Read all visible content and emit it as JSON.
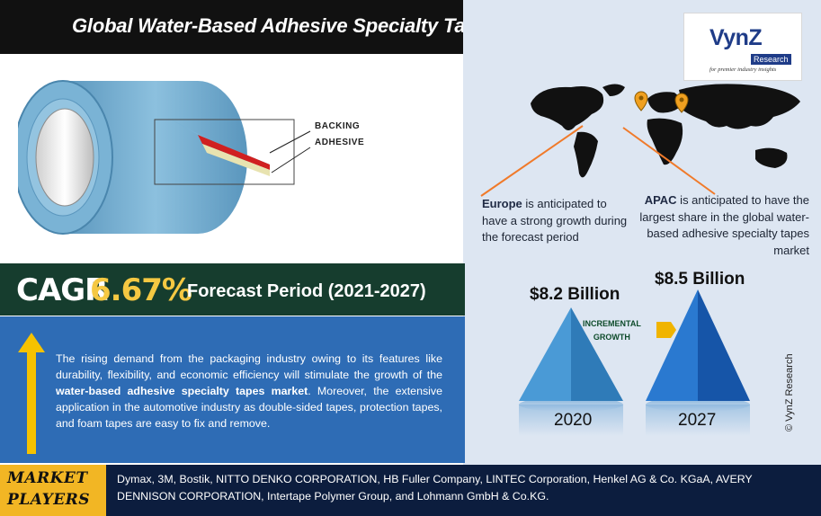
{
  "header": {
    "title": "Global Water-Based Adhesive Specialty Tapes Market"
  },
  "logo": {
    "brand": "VynZ",
    "sub": "Research",
    "tagline": "for premier industry insights"
  },
  "illustration": {
    "labels": [
      "BACKING",
      "ADHESIVE"
    ],
    "colors": {
      "tape": "#6fa7c9",
      "backing": "#d02020",
      "adhesive": "#e8e3b0"
    }
  },
  "map": {
    "region_notes": [
      {
        "region": "Europe",
        "text": " is anticipated to have a strong growth during the forecast period"
      },
      {
        "region": "APAC",
        "text": " is anticipated to have the largest share in the global water-based adhesive specialty tapes market"
      }
    ],
    "pin_color": "#f0a020",
    "line_color": "#f07a2a"
  },
  "cagr": {
    "label": "CAGR",
    "value": "6.67%",
    "forecast": "Forecast Period (2021-2027)"
  },
  "description": {
    "part1": "The rising demand from the packaging industry owing to its features like durability, flexibility, and economic efficiency will stimulate the growth of the ",
    "highlight": "water-based adhesive specialty tapes market",
    "part2": ". Moreover, the extensive application in the automotive industry as double-sided tapes, protection tapes, and foam tapes are easy to fix and remove."
  },
  "market_size": {
    "bars": [
      {
        "year": "2020",
        "amount": "$8.2 Billion",
        "value": 8.2,
        "color": "#3a8fd0"
      },
      {
        "year": "2027",
        "amount": "$8.5 Billion",
        "value": 8.5,
        "color": "#1f66c4"
      }
    ],
    "incremental_label_1": "INCREMENTAL",
    "incremental_label_2": "GROWTH"
  },
  "copyright": "© VynZ Research",
  "footer": {
    "label_line1": "MARKET",
    "label_line2": "PLAYERS",
    "players": "Dymax, 3M, Bostik, NITTO DENKO CORPORATION, HB Fuller Company, LINTEC Corporation, Henkel AG & Co. KGaA, AVERY DENNISON CORPORATION, Intertape Polymer Group, and Lohmann GmbH & Co.KG."
  }
}
